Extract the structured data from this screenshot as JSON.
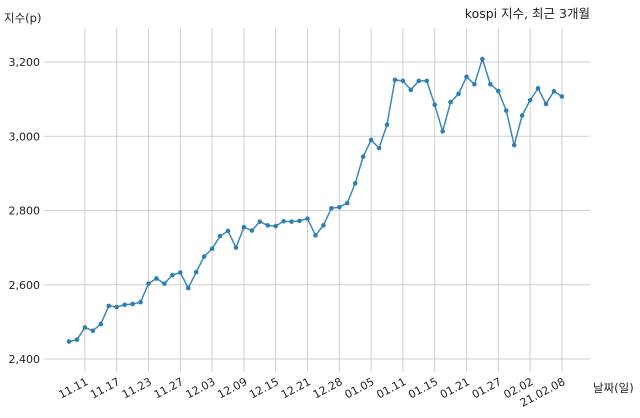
{
  "chart_data": {
    "type": "line",
    "title": "kospi 지수, 최근 3개월",
    "ylabel": "지수(p)",
    "xlabel": "날짜(일)",
    "ylim": [
      2400,
      3300
    ],
    "yticks": [
      2400,
      2600,
      2800,
      3000,
      3200
    ],
    "ytick_labels": [
      "2,400",
      "2,600",
      "2,800",
      "3,000",
      "3,200"
    ],
    "xtick_labels": [
      "11.11",
      "11.17",
      "11.23",
      "11.27",
      "12.03",
      "12.09",
      "12.15",
      "12.21",
      "12.28",
      "01.05",
      "01.11",
      "01.15",
      "01.21",
      "01.27",
      "02.02",
      "21.02.08"
    ],
    "xtick_index": [
      2,
      6,
      10,
      14,
      18,
      22,
      26,
      30,
      34,
      38,
      42,
      46,
      50,
      54,
      58,
      62
    ],
    "grid": true,
    "series": [
      {
        "name": "",
        "color": "#3a88b8",
        "values": [
          2447,
          2452,
          2485,
          2476,
          2494,
          2543,
          2540,
          2546,
          2548,
          2553,
          2603,
          2617,
          2603,
          2626,
          2633,
          2591,
          2634,
          2676,
          2697,
          2731,
          2745,
          2700,
          2755,
          2746,
          2770,
          2760,
          2758,
          2771,
          2770,
          2772,
          2778,
          2733,
          2760,
          2806,
          2809,
          2820,
          2873,
          2945,
          2990,
          2968,
          3031,
          3152,
          3149,
          3125,
          3149,
          3149,
          3085,
          3013,
          3092,
          3114,
          3160,
          3140,
          3208,
          3140,
          3122,
          3069,
          2976,
          3056,
          3097,
          3129,
          3087,
          3121,
          3107
        ]
      }
    ]
  }
}
